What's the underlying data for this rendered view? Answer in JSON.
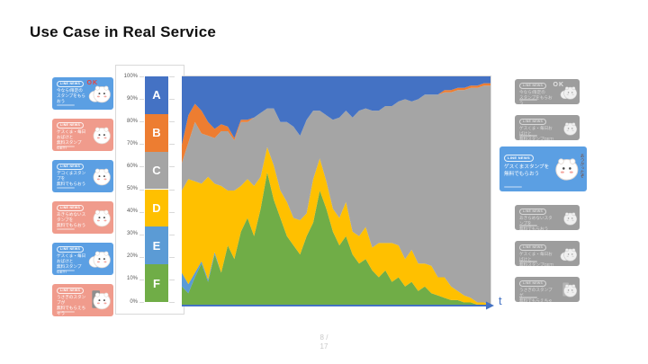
{
  "slide": {
    "title": "Use Case in Real Service",
    "page_line1": "8 /",
    "page_line2": "17"
  },
  "axis": {
    "label": "t"
  },
  "colors": {
    "card_blue": "#5B9FE3",
    "card_salmon": "#F09B8C",
    "card_gray": "#9D9D9D",
    "accent_red": "#E8413C",
    "accent_gray": "#E3E3E3",
    "axis_blue": "#4472C4",
    "panel_border": "#D9D9D9",
    "tick_text": "#595959",
    "page_text": "#C8C8C8"
  },
  "cards": [
    {
      "badge": "LINE NEWS",
      "line1": "今なら!限定の",
      "line2": "スタンプをもらおう",
      "accent": "OK",
      "sticker": "two-cats",
      "bg": "blue"
    },
    {
      "badge": "LINE NEWS",
      "line1": "ゲスくま・毎日おばけと",
      "line2": "無料スタンプGET!",
      "accent": "",
      "sticker": "bear-lying",
      "bg": "salmon"
    },
    {
      "badge": "LINE NEWS",
      "line1": "デコくまスタンプを",
      "line2": "無料でもらおう",
      "accent": "",
      "sticker": "cat-drink",
      "bg": "blue"
    },
    {
      "badge": "LINE NEWS",
      "line1": "あきらめないスタンプを",
      "line2": "無料でもらおう",
      "accent": "",
      "sticker": "white-blob",
      "bg": "salmon"
    },
    {
      "badge": "LINE NEWS",
      "line1": "ゲスくま・毎日おばけと",
      "line2": "無料スタンプGET!",
      "accent": "",
      "sticker": "two-cats",
      "bg": "blue"
    },
    {
      "badge": "LINE NEWS",
      "line1": "うさぎのスタンプが",
      "line2": "無料でもらえちゃう",
      "accent": "",
      "sticker": "door-cat",
      "bg": "salmon"
    }
  ],
  "highlight_card": {
    "badge": "LINE NEWS",
    "line1": "ゲスくまスタンプを",
    "line2": "無料でもらおう",
    "vertical_note": "あつかったぞ",
    "sticker": "bear-drink",
    "bg": "blue"
  },
  "chart_data": {
    "type": "area",
    "stacked_100": true,
    "title": "",
    "xlabel": "t",
    "ylabel": "",
    "ylim": [
      0,
      100
    ],
    "y_ticks": [
      "100%",
      "90%",
      "80%",
      "70%",
      "60%",
      "50%",
      "40%",
      "30%",
      "20%",
      "10%",
      "0%"
    ],
    "x_count": 48,
    "series": [
      {
        "name": "F",
        "color": "#70AD47",
        "values": [
          8,
          5,
          12,
          18,
          10,
          22,
          14,
          26,
          20,
          32,
          38,
          30,
          42,
          58,
          46,
          38,
          30,
          26,
          22,
          30,
          36,
          50,
          42,
          32,
          26,
          30,
          22,
          18,
          20,
          15,
          12,
          15,
          10,
          12,
          8,
          10,
          6,
          8,
          5,
          4,
          3,
          2,
          2,
          1,
          1,
          0,
          0,
          0
        ]
      },
      {
        "name": "E",
        "color": "#5B9BD5",
        "values": [
          6,
          4,
          2,
          1,
          1,
          1,
          0,
          0,
          0,
          0,
          0,
          0,
          0,
          0,
          0,
          0,
          0,
          0,
          0,
          0,
          0,
          0,
          0,
          0,
          0,
          0,
          0,
          0,
          0,
          0,
          0,
          0,
          0,
          0,
          0,
          0,
          0,
          0,
          0,
          0,
          0,
          0,
          0,
          0,
          0,
          0,
          0,
          0
        ]
      },
      {
        "name": "D",
        "color": "#FFC000",
        "values": [
          36,
          46,
          40,
          34,
          45,
          30,
          38,
          24,
          30,
          20,
          17,
          22,
          14,
          11,
          15,
          12,
          15,
          12,
          15,
          10,
          19,
          14,
          12,
          10,
          12,
          15,
          10,
          12,
          14,
          10,
          15,
          12,
          17,
          14,
          12,
          14,
          12,
          10,
          12,
          8,
          9,
          6,
          4,
          3,
          2,
          1,
          1,
          0
        ]
      },
      {
        "name": "C",
        "color": "#A5A5A5",
        "values": [
          12,
          16,
          26,
          22,
          18,
          20,
          24,
          26,
          22,
          28,
          25,
          30,
          28,
          17,
          25,
          30,
          35,
          40,
          37,
          41,
          30,
          21,
          29,
          39,
          44,
          40,
          50,
          55,
          52,
          60,
          58,
          60,
          60,
          63,
          70,
          65,
          72,
          74,
          75,
          80,
          81,
          85,
          88,
          90,
          92,
          94,
          95,
          96
        ]
      },
      {
        "name": "B",
        "color": "#ED7D31",
        "values": [
          8,
          12,
          8,
          10,
          6,
          4,
          3,
          2,
          1,
          1,
          1,
          0,
          0,
          0,
          0,
          0,
          0,
          0,
          0,
          0,
          0,
          0,
          0,
          0,
          0,
          0,
          0,
          0,
          0,
          0,
          0,
          0,
          0,
          0,
          0,
          0,
          0,
          0,
          0,
          0,
          1,
          1,
          1,
          1,
          1,
          1,
          1,
          1
        ]
      },
      {
        "name": "A",
        "color": "#4472C4",
        "values": [
          30,
          17,
          12,
          15,
          20,
          23,
          21,
          22,
          27,
          19,
          19,
          18,
          16,
          14,
          14,
          20,
          20,
          22,
          26,
          19,
          15,
          15,
          17,
          19,
          18,
          15,
          18,
          15,
          14,
          15,
          15,
          13,
          13,
          11,
          10,
          11,
          10,
          8,
          8,
          8,
          6,
          6,
          5,
          5,
          4,
          4,
          3,
          3
        ]
      }
    ]
  }
}
